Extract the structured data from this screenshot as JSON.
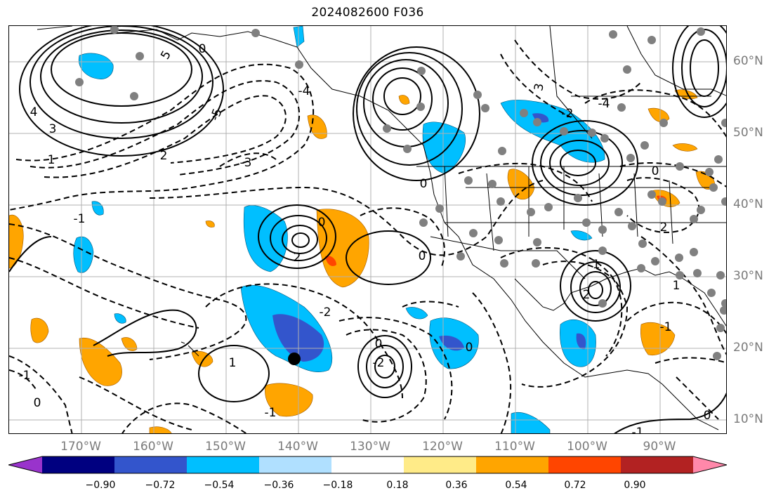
{
  "title": "2024082600 F036",
  "longitude_labels": [
    "170°W",
    "160°W",
    "150°W",
    "140°W",
    "130°W",
    "120°W",
    "110°W",
    "100°W",
    "90°W"
  ],
  "latitude_labels": [
    "60°N",
    "50°N",
    "40°N",
    "30°N",
    "20°N",
    "10°N"
  ],
  "colorbar": {
    "colors": [
      "#9933cc",
      "#000080",
      "#3355cc",
      "#00bfff",
      "#b0e0ff",
      "#ffffff",
      "#ffeb88",
      "#ffa500",
      "#ff4500",
      "#b22222",
      "#ff88aa"
    ],
    "tick_labels": [
      "−0.90",
      "−0.72",
      "−0.54",
      "−0.36",
      "−0.18",
      "0.18",
      "0.36",
      "0.54",
      "0.72",
      "0.90"
    ]
  },
  "contour_labels": [
    "5",
    "4",
    "3",
    "2",
    "1",
    "0",
    "-1",
    "-2",
    "-3",
    "-4",
    "-5",
    "2",
    "1",
    "0",
    "-2",
    "-1",
    "3"
  ],
  "colors": {
    "positive_fill": "#ffa500",
    "negative_fill": "#00bfff",
    "strong_negative_fill": "#3355cc",
    "grid": "#b0b0b0",
    "station_dot": "#808080"
  }
}
